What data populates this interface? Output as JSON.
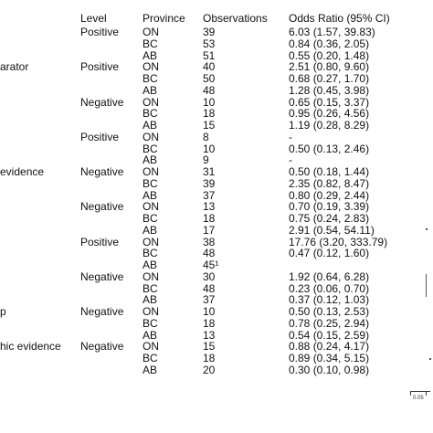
{
  "headers": {
    "level": "Level",
    "province": "Province",
    "observations": "Observations",
    "odds_ratio": "Odds Ratio (95% CI)"
  },
  "groups": [
    {
      "label": "",
      "rows": [
        {
          "level": "Positive",
          "province": "ON",
          "obs": "39",
          "or": "6.03 (1.57, 39.83)"
        },
        {
          "level": "",
          "province": "BC",
          "obs": "53",
          "or": "0.84 (0.36, 2.05)"
        },
        {
          "level": "",
          "province": "AB",
          "obs": "51",
          "or": "0.55 (0.20, 1.48)"
        }
      ]
    },
    {
      "label": "arator",
      "rows": [
        {
          "level": "Positive",
          "province": "ON",
          "obs": "40",
          "or": "2.51 (0.80, 9.60)"
        },
        {
          "level": "",
          "province": "BC",
          "obs": "50",
          "or": "0.68 (0.27, 1.70)"
        },
        {
          "level": "",
          "province": "AB",
          "obs": "48",
          "or": "1.28 (0.45, 3.98)"
        }
      ]
    },
    {
      "label": "",
      "rows": [
        {
          "level": "Negative",
          "province": "ON",
          "obs": "10",
          "or": "0.65 (0.15, 3.37)"
        },
        {
          "level": "",
          "province": "BC",
          "obs": "18",
          "or": "0.95 (0.26, 4.56)"
        },
        {
          "level": "",
          "province": "AB",
          "obs": "15",
          "or": "1.19 (0.28, 8.29)"
        }
      ]
    },
    {
      "label": "",
      "rows": [
        {
          "level": "Positive",
          "province": "ON",
          "obs": "8",
          "or": "-"
        },
        {
          "level": "",
          "province": "BC",
          "obs": "10",
          "or": "0.50 (0.13, 2.46)"
        },
        {
          "level": "",
          "province": "AB",
          "obs": "9",
          "or": "-"
        }
      ]
    },
    {
      "label": "evidence",
      "rows": [
        {
          "level": "Negative",
          "province": "ON",
          "obs": "31",
          "or": "0.50 (0.18, 1.44)"
        },
        {
          "level": "",
          "province": "BC",
          "obs": "39",
          "or": "2.35 (0.82, 8.47)"
        },
        {
          "level": "",
          "province": "AB",
          "obs": "37",
          "or": "0.80 (0.29, 2.44)"
        }
      ]
    },
    {
      "label": "",
      "rows": [
        {
          "level": "Negative",
          "province": "ON",
          "obs": "13",
          "or": "0.70 (0.19, 3.39)"
        },
        {
          "level": "",
          "province": "BC",
          "obs": "18",
          "or": "0.75 (0.24, 2.83)"
        },
        {
          "level": "",
          "province": "AB",
          "obs": "17",
          "or": "2.91 (0.54, 54.11)"
        }
      ]
    },
    {
      "label": "",
      "rows": [
        {
          "level": "Positive",
          "province": "ON",
          "obs": "38",
          "or": "17.76 (3.20, 333.79)"
        },
        {
          "level": "",
          "province": "BC",
          "obs": "48",
          "or": "0.47 (0.12, 1.60)"
        },
        {
          "level": "",
          "province": "AB",
          "obs": "45¹",
          "or": ""
        }
      ]
    },
    {
      "label": "",
      "rows": [
        {
          "level": "Negative",
          "province": "ON",
          "obs": "30",
          "or": "1.92 (0.64, 6.28)"
        },
        {
          "level": "",
          "province": "BC",
          "obs": "48",
          "or": "0.23 (0.06, 0.70)"
        },
        {
          "level": "",
          "province": "AB",
          "obs": "37",
          "or": "0.37 (0.12, 1.03)"
        }
      ]
    },
    {
      "label": "p",
      "rows": [
        {
          "level": "Negative",
          "province": "ON",
          "obs": "10",
          "or": "0.50 (0.13, 2.53)"
        },
        {
          "level": "",
          "province": "BC",
          "obs": "18",
          "or": "0.78 (0.25, 2.94)"
        },
        {
          "level": "",
          "province": "AB",
          "obs": "13",
          "or": "0.54 (0.15, 2.59)"
        }
      ]
    },
    {
      "label": "hic evidence",
      "rows": [
        {
          "level": "Negative",
          "province": "ON",
          "obs": "15",
          "or": "0.88 (0.24, 4.17)"
        },
        {
          "level": "",
          "province": "BC",
          "obs": "18",
          "or": "0.89 (0.34, 5.15)"
        },
        {
          "level": "",
          "province": "AB",
          "obs": "20",
          "or": "0.30 (0.10, 0.98)"
        }
      ]
    }
  ],
  "axis": {
    "tick_label": "0.05"
  }
}
